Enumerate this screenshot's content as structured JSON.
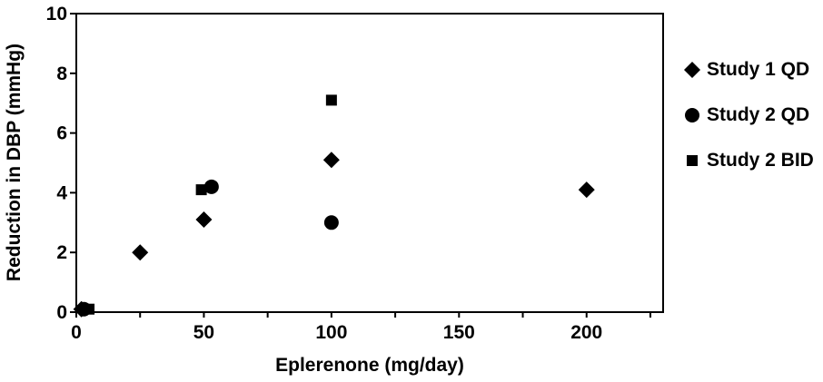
{
  "chart_data": {
    "type": "scatter",
    "title": "",
    "xlabel": "Eplerenone (mg/day)",
    "ylabel": "Reduction in DBP (mmHg)",
    "xlim": [
      0,
      230
    ],
    "ylim": [
      0,
      10
    ],
    "x_ticks": [
      0,
      50,
      100,
      150,
      200
    ],
    "y_ticks": [
      0,
      2,
      4,
      6,
      8,
      10
    ],
    "grid": false,
    "legend_position": "right",
    "series": [
      {
        "name": "Study 1 QD",
        "marker": "diamond",
        "points": [
          {
            "x": 2,
            "y": 0.1
          },
          {
            "x": 25,
            "y": 2.0
          },
          {
            "x": 50,
            "y": 3.1
          },
          {
            "x": 100,
            "y": 5.1
          },
          {
            "x": 200,
            "y": 4.1
          }
        ]
      },
      {
        "name": "Study 2 QD",
        "marker": "circle",
        "points": [
          {
            "x": 3,
            "y": 0.1
          },
          {
            "x": 53,
            "y": 4.2
          },
          {
            "x": 100,
            "y": 3.0
          }
        ]
      },
      {
        "name": "Study 2 BID",
        "marker": "square",
        "points": [
          {
            "x": 5,
            "y": 0.1
          },
          {
            "x": 49,
            "y": 4.1
          },
          {
            "x": 100,
            "y": 7.1
          }
        ]
      }
    ],
    "colors": {
      "marker": "#000000",
      "axis": "#000000",
      "background": "#ffffff"
    }
  }
}
